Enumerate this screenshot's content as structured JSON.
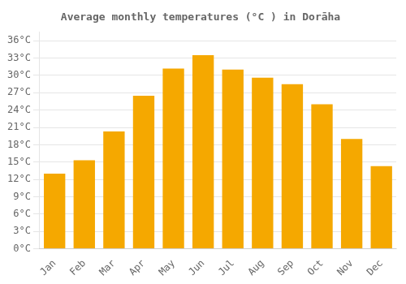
{
  "chart_data": {
    "type": "bar",
    "title": "Average monthly temperatures (°C ) in Dorāha",
    "categories": [
      "Jan",
      "Feb",
      "Mar",
      "Apr",
      "May",
      "Jun",
      "Jul",
      "Aug",
      "Sep",
      "Oct",
      "Nov",
      "Dec"
    ],
    "values": [
      13.0,
      15.3,
      20.3,
      26.5,
      31.2,
      33.5,
      31.0,
      29.6,
      28.5,
      25.0,
      19.0,
      14.3
    ],
    "color": "#F5A800",
    "ylim": [
      0,
      37.5
    ],
    "yticks": [
      {
        "value": 0,
        "label": "0°C"
      },
      {
        "value": 3,
        "label": "3°C"
      },
      {
        "value": 6,
        "label": "6°C"
      },
      {
        "value": 9,
        "label": "9°C"
      },
      {
        "value": 12,
        "label": "12°C"
      },
      {
        "value": 15,
        "label": "15°C"
      },
      {
        "value": 18,
        "label": "18°C"
      },
      {
        "value": 21,
        "label": "21°C"
      },
      {
        "value": 24,
        "label": "24°C"
      },
      {
        "value": 27,
        "label": "27°C"
      },
      {
        "value": 30,
        "label": "30°C"
      },
      {
        "value": 33,
        "label": "33°C"
      },
      {
        "value": 36,
        "label": "36°C"
      }
    ],
    "grid": true
  }
}
